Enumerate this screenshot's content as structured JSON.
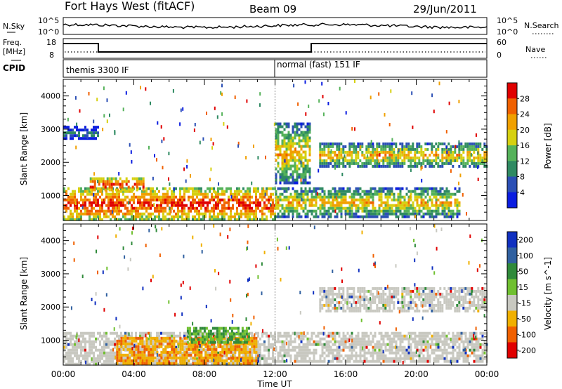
{
  "header": {
    "station": "Fort Hays West (fitACF)",
    "beam": "Beam 09",
    "date": "29/Jun/2011"
  },
  "noise_panel": {
    "left_label": "N.Sky",
    "right_label": "N.Search",
    "left_ticks": [
      "10^5",
      "10^0"
    ],
    "right_ticks": [
      "10^5",
      "10^0"
    ]
  },
  "freq_panel": {
    "left_label_1": "Freq.",
    "left_label_2": "[MHz]",
    "right_label": "Nave",
    "left_ticks": [
      "18",
      "8"
    ],
    "right_ticks": [
      "60",
      "0"
    ]
  },
  "cpid_panel": {
    "label": "CPID",
    "modes": [
      {
        "name": "themis 3300 IF",
        "start_hour": 0
      },
      {
        "name": "normal (fast) 151 IF",
        "start_hour": 12
      }
    ]
  },
  "chart_data": [
    {
      "type": "heatmap",
      "name": "power",
      "ylabel": "Slant Range [km]",
      "yticks": [
        1000,
        2000,
        3000,
        4000
      ],
      "ylim": [
        250,
        4500
      ],
      "colorbar_label": "Power [dB]",
      "colorbar_ticks": [
        4,
        8,
        12,
        16,
        20,
        24,
        28
      ],
      "colors": [
        "#0b1de0",
        "#2b4fb5",
        "#2f8a62",
        "#55b25a",
        "#d6d010",
        "#f0a000",
        "#f06000",
        "#e00000"
      ],
      "echo_bands": [
        {
          "t0": 0.0,
          "t1": 12.0,
          "r0": 300,
          "r1": 1250,
          "level": "high"
        },
        {
          "t0": 0.0,
          "t1": 2.0,
          "r0": 2700,
          "r1": 3100,
          "level": "low"
        },
        {
          "t0": 1.5,
          "t1": 4.5,
          "r0": 1150,
          "r1": 1550,
          "level": "high"
        },
        {
          "t0": 12.0,
          "t1": 14.0,
          "r0": 1400,
          "r1": 3200,
          "level": "medium"
        },
        {
          "t0": 12.0,
          "t1": 22.5,
          "r0": 400,
          "r1": 1250,
          "level": "medium"
        },
        {
          "t0": 14.5,
          "t1": 24.0,
          "r0": 1900,
          "r1": 2600,
          "level": "medium"
        }
      ]
    },
    {
      "type": "heatmap",
      "name": "velocity",
      "ylabel": "Slant Range [km]",
      "xlabel": "Time UT",
      "xticks": [
        "00:00",
        "04:00",
        "08:00",
        "12:00",
        "16:00",
        "20:00",
        "00:00"
      ],
      "yticks": [
        1000,
        2000,
        3000,
        4000
      ],
      "ylim": [
        250,
        4500
      ],
      "colorbar_label": "Velocity [m s^-1]",
      "colorbar_ticks": [
        "200",
        "100",
        "50",
        "15",
        "-15",
        "-50",
        "-100",
        "-200"
      ],
      "colors": [
        "#1030c0",
        "#3060a0",
        "#2f8a3a",
        "#70c030",
        "#c8c8c0",
        "#f0b000",
        "#f06000",
        "#e00000"
      ],
      "echo_bands": [
        {
          "t0": 0.0,
          "t1": 12.0,
          "r0": 300,
          "r1": 1250,
          "level": "ground scatter"
        },
        {
          "t0": 3.0,
          "t1": 11.0,
          "r0": 300,
          "r1": 1100,
          "level": "negative"
        },
        {
          "t0": 7.0,
          "t1": 10.5,
          "r0": 900,
          "r1": 1400,
          "level": "positive"
        },
        {
          "t0": 12.0,
          "t1": 24.0,
          "r0": 400,
          "r1": 1250,
          "level": "ground scatter"
        },
        {
          "t0": 14.5,
          "t1": 24.0,
          "r0": 1900,
          "r1": 2600,
          "level": "ground scatter"
        }
      ]
    }
  ]
}
